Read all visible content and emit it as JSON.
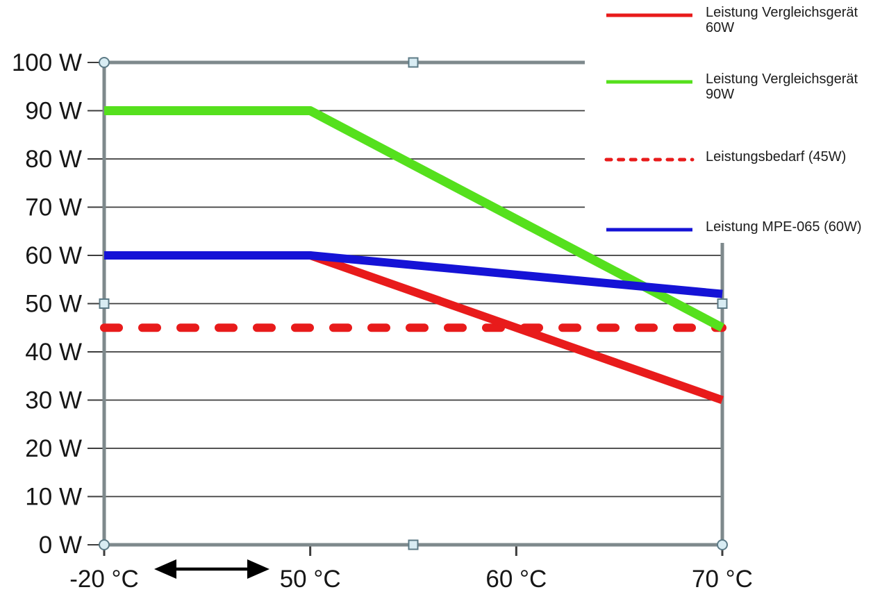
{
  "window": {
    "background": "#ffffff"
  },
  "chart_data": {
    "type": "line",
    "title": "",
    "categories": [
      "-20 °C",
      "50 °C",
      "60 °C",
      "70 °C"
    ],
    "xticklabels": [
      "-20 °C",
      "50 °C",
      "60 °C",
      "70 °C"
    ],
    "yticklabels": [
      "0 W",
      "10 W",
      "20 W",
      "30 W",
      "40 W",
      "50 W",
      "60 W",
      "70 W",
      "80 W",
      "90 W",
      "100 W"
    ],
    "ylim": [
      0,
      100
    ],
    "ytick_step": 10,
    "grid": true,
    "legend_position": "top-right",
    "series": [
      {
        "name": "Leistung Vergleichsgerät 60W",
        "color": "#e81b1b",
        "dash": "solid",
        "values": [
          60,
          60,
          45,
          30
        ]
      },
      {
        "name": "Leistung Vergleichsgerät 90W",
        "color": "#55e01d",
        "dash": "solid",
        "values": [
          90,
          90,
          67.5,
          45
        ]
      },
      {
        "name": "Leistungsbedarf (45W)",
        "color": "#e81b1b",
        "dash": "dashed",
        "values": [
          45,
          45,
          45,
          45
        ]
      },
      {
        "name": "Leistung MPE-065 (60W)",
        "color": "#1513d6",
        "dash": "solid",
        "values": [
          60,
          60,
          56,
          52
        ]
      }
    ],
    "draw_order": [
      2,
      0,
      1,
      3
    ],
    "annotations": [
      {
        "type": "double-arrow",
        "axis": "x",
        "between": [
          "-20 °C",
          "50 °C"
        ],
        "color": "#000000"
      }
    ]
  },
  "ui": {
    "plot_border_color": "#7e898c",
    "gridline_color": "#3c3c3c",
    "axis_text_color": "#161616",
    "legend_text_color": "#1c1c1c",
    "selection_handles": {
      "visible": true,
      "fill": "#d8ecf3",
      "stroke": "#5c7a86"
    }
  }
}
